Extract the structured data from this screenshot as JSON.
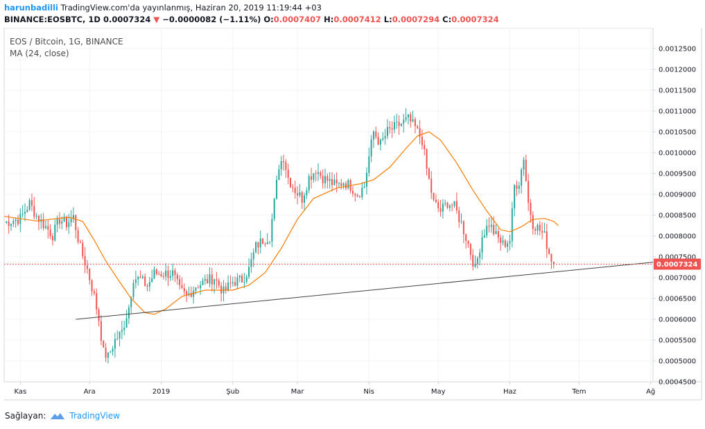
{
  "header": {
    "author": "harunbadilli",
    "published": "TradingView.com'da yayınlanmış, Haziran 20, 2019 11:19:44 +03",
    "symbol_line": "BINANCE:EOSBTC, 1D",
    "price": "0.0007324",
    "change_arrow": "▼",
    "change": "−0.0000082 (−1.11%)",
    "o_label": "O:",
    "o_value": "0.0007407",
    "h_label": "H:",
    "h_value": "0.0007412",
    "l_label": "L:",
    "l_value": "0.0007294",
    "c_label": "C:",
    "c_value": "0.0007324"
  },
  "legend": {
    "title": "EOS / Bitcoin, 1G, BINANCE",
    "indicator": "MA (24, close)"
  },
  "footer": {
    "provided_by": "Sağlayan:",
    "brand": "TradingView"
  },
  "colors": {
    "up": "#26a69a",
    "down": "#ef5350",
    "ma": "#f57c00",
    "trendline": "#404040",
    "last_price": "#ef5350"
  },
  "chart_data": {
    "type": "candlestick",
    "title": "EOS / Bitcoin, 1G, BINANCE",
    "ylim": [
      0.00045,
      0.0013
    ],
    "y_ticks": [
      "0.0012500",
      "0.0012000",
      "0.0011500",
      "0.0011000",
      "0.0010500",
      "0.0010000",
      "0.0009500",
      "0.0009000",
      "0.0008500",
      "0.0008000",
      "0.0007500",
      "0.0007000",
      "0.0006500",
      "0.0006000",
      "0.0005500",
      "0.0005000",
      "0.0004500"
    ],
    "x_ticks": [
      {
        "label": "Kas",
        "date": "2018-11-01"
      },
      {
        "label": "Ara",
        "date": "2018-12-01"
      },
      {
        "label": "2019",
        "date": "2019-01-01"
      },
      {
        "label": "Şub",
        "date": "2019-02-01"
      },
      {
        "label": "Mar",
        "date": "2019-03-01"
      },
      {
        "label": "Nis",
        "date": "2019-04-01"
      },
      {
        "label": "May",
        "date": "2019-05-01"
      },
      {
        "label": "Haz",
        "date": "2019-06-01"
      },
      {
        "label": "Tem",
        "date": "2019-07-01"
      },
      {
        "label": "Ağ",
        "date": "2019-08-01"
      }
    ],
    "x_range": [
      "2018-10-25",
      "2019-08-02"
    ],
    "last_price": 0.0007324,
    "last_price_label": "0.0007324",
    "series_start": "2018-10-25",
    "close_anchors": [
      [
        "2018-10-25",
        0.000832
      ],
      [
        "2018-11-01",
        0.000842
      ],
      [
        "2018-11-05",
        0.000878
      ],
      [
        "2018-11-08",
        0.000848
      ],
      [
        "2018-11-12",
        0.000822
      ],
      [
        "2018-11-15",
        0.000802
      ],
      [
        "2018-11-18",
        0.00084
      ],
      [
        "2018-11-21",
        0.00083
      ],
      [
        "2018-11-24",
        0.000845
      ],
      [
        "2018-11-27",
        0.00077
      ],
      [
        "2018-11-30",
        0.00072
      ],
      [
        "2018-12-03",
        0.000655
      ],
      [
        "2018-12-05",
        0.0006
      ],
      [
        "2018-12-07",
        0.00052
      ],
      [
        "2018-12-09",
        0.00051
      ],
      [
        "2018-12-12",
        0.00055
      ],
      [
        "2018-12-15",
        0.00057
      ],
      [
        "2018-12-18",
        0.00063
      ],
      [
        "2018-12-20",
        0.0007
      ],
      [
        "2018-12-23",
        0.000695
      ],
      [
        "2018-12-26",
        0.00068
      ],
      [
        "2018-12-29",
        0.00071
      ],
      [
        "2019-01-02",
        0.00071
      ],
      [
        "2019-01-06",
        0.00071
      ],
      [
        "2019-01-09",
        0.00067
      ],
      [
        "2019-01-12",
        0.000655
      ],
      [
        "2019-01-16",
        0.00068
      ],
      [
        "2019-01-20",
        0.00069
      ],
      [
        "2019-01-24",
        0.0007
      ],
      [
        "2019-01-28",
        0.000665
      ],
      [
        "2019-02-01",
        0.00069
      ],
      [
        "2019-02-05",
        0.000695
      ],
      [
        "2019-02-08",
        0.00072
      ],
      [
        "2019-02-11",
        0.000775
      ],
      [
        "2019-02-14",
        0.00079
      ],
      [
        "2019-02-17",
        0.0008
      ],
      [
        "2019-02-19",
        0.00088
      ],
      [
        "2019-02-21",
        0.00097
      ],
      [
        "2019-02-23",
        0.00099
      ],
      [
        "2019-02-25",
        0.00094
      ],
      [
        "2019-02-28",
        0.00091
      ],
      [
        "2019-03-03",
        0.00089
      ],
      [
        "2019-03-06",
        0.00094
      ],
      [
        "2019-03-09",
        0.00096
      ],
      [
        "2019-03-12",
        0.00094
      ],
      [
        "2019-03-15",
        0.00093
      ],
      [
        "2019-03-18",
        0.00092
      ],
      [
        "2019-03-21",
        0.00093
      ],
      [
        "2019-03-24",
        0.00092
      ],
      [
        "2019-03-27",
        0.0009
      ],
      [
        "2019-03-30",
        0.00092
      ],
      [
        "2019-04-01",
        0.00099
      ],
      [
        "2019-04-03",
        0.00105
      ],
      [
        "2019-04-06",
        0.00102
      ],
      [
        "2019-04-09",
        0.00105
      ],
      [
        "2019-04-12",
        0.00106
      ],
      [
        "2019-04-15",
        0.00107
      ],
      [
        "2019-04-18",
        0.00108
      ],
      [
        "2019-04-21",
        0.00106
      ],
      [
        "2019-04-24",
        0.00103
      ],
      [
        "2019-04-26",
        0.00096
      ],
      [
        "2019-04-29",
        0.00088
      ],
      [
        "2019-05-02",
        0.00086
      ],
      [
        "2019-05-05",
        0.00088
      ],
      [
        "2019-05-08",
        0.00087
      ],
      [
        "2019-05-11",
        0.00083
      ],
      [
        "2019-05-14",
        0.00078
      ],
      [
        "2019-05-17",
        0.00072
      ],
      [
        "2019-05-20",
        0.0008
      ],
      [
        "2019-05-23",
        0.00083
      ],
      [
        "2019-05-26",
        0.0008
      ],
      [
        "2019-05-29",
        0.00078
      ],
      [
        "2019-06-01",
        0.00079
      ],
      [
        "2019-06-03",
        0.00092
      ],
      [
        "2019-06-05",
        0.00093
      ],
      [
        "2019-06-07",
        0.00099
      ],
      [
        "2019-06-09",
        0.00088
      ],
      [
        "2019-06-11",
        0.00083
      ],
      [
        "2019-06-13",
        0.00082
      ],
      [
        "2019-06-16",
        0.0008
      ],
      [
        "2019-06-18",
        0.00076
      ],
      [
        "2019-06-20",
        0.000732
      ]
    ],
    "moving_average": {
      "name": "MA (24, close)",
      "points": [
        [
          "2018-10-25",
          0.000847
        ],
        [
          "2018-11-08",
          0.000836
        ],
        [
          "2018-11-22",
          0.000845
        ],
        [
          "2018-11-28",
          0.000835
        ],
        [
          "2018-12-03",
          0.00079
        ],
        [
          "2018-12-08",
          0.00074
        ],
        [
          "2018-12-14",
          0.00069
        ],
        [
          "2018-12-19",
          0.00065
        ],
        [
          "2018-12-25",
          0.000616
        ],
        [
          "2018-12-29",
          0.000612
        ],
        [
          "2019-01-03",
          0.000625
        ],
        [
          "2019-01-10",
          0.000655
        ],
        [
          "2019-01-20",
          0.00067
        ],
        [
          "2019-02-01",
          0.00067
        ],
        [
          "2019-02-08",
          0.000682
        ],
        [
          "2019-02-15",
          0.000712
        ],
        [
          "2019-02-22",
          0.00077
        ],
        [
          "2019-03-01",
          0.00084
        ],
        [
          "2019-03-08",
          0.00089
        ],
        [
          "2019-03-18",
          0.000915
        ],
        [
          "2019-03-28",
          0.000925
        ],
        [
          "2019-04-03",
          0.000935
        ],
        [
          "2019-04-10",
          0.000965
        ],
        [
          "2019-04-17",
          0.00101
        ],
        [
          "2019-04-22",
          0.00104
        ],
        [
          "2019-04-27",
          0.00105
        ],
        [
          "2019-05-02",
          0.00103
        ],
        [
          "2019-05-09",
          0.000975
        ],
        [
          "2019-05-16",
          0.00091
        ],
        [
          "2019-05-22",
          0.00086
        ],
        [
          "2019-05-28",
          0.000815
        ],
        [
          "2019-06-01",
          0.00081
        ],
        [
          "2019-06-06",
          0.000822
        ],
        [
          "2019-06-11",
          0.00084
        ],
        [
          "2019-06-16",
          0.000842
        ],
        [
          "2019-06-20",
          0.000835
        ],
        [
          "2019-06-22",
          0.000825
        ]
      ]
    },
    "trendline": {
      "start": [
        "2018-11-25",
        0.0006
      ],
      "end": [
        "2019-08-02",
        0.000737
      ]
    }
  }
}
